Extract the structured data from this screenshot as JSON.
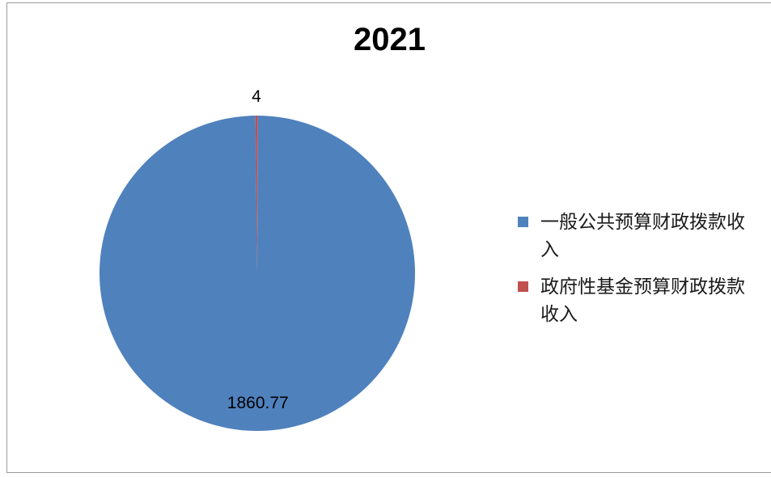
{
  "chart_data": {
    "type": "pie",
    "title": "2021",
    "categories": [
      "一般公共预算财政拨款收入",
      "政府性基金预算财政拨款收入"
    ],
    "values": [
      1860.77,
      4
    ],
    "data_labels": [
      "1860.77",
      "4"
    ],
    "colors": [
      "#4F81BD",
      "#C0504D"
    ],
    "legend_position": "right"
  }
}
